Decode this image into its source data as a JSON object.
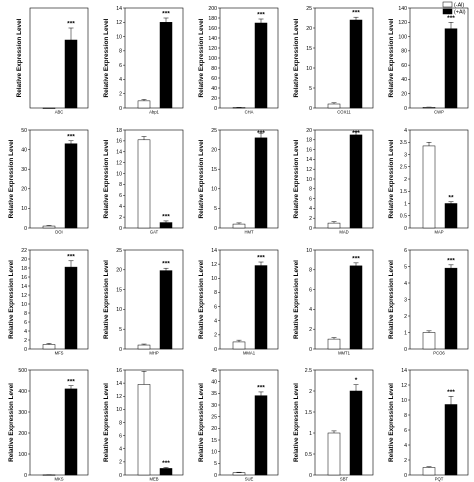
{
  "legend": {
    "labels": [
      "(-Al)",
      "(+Al)"
    ],
    "position": "top-right",
    "colors": [
      "#ffffff",
      "#000000"
    ]
  },
  "chart_data": [
    {
      "type": "bar",
      "gene": "ABC",
      "categories": [
        "(-Al)",
        "(+Al)"
      ],
      "values": [
        0,
        340
      ],
      "errors": [
        0,
        60
      ],
      "significance": "***",
      "ylabel": "Relative Expression Level",
      "ylim": [
        0,
        500
      ],
      "yticks": [],
      "show_ticklabels": false
    },
    {
      "type": "bar",
      "gene": "Abp1",
      "categories": [
        "(-Al)",
        "(+Al)"
      ],
      "values": [
        1,
        12
      ],
      "errors": [
        0.2,
        0.6
      ],
      "significance": "***",
      "ylabel": "Relative Expression Level",
      "ylim": [
        0,
        14
      ],
      "yticks": [
        0,
        2,
        4,
        6,
        8,
        10,
        12,
        14
      ],
      "show_ticklabels": true
    },
    {
      "type": "bar",
      "gene": "CHA",
      "categories": [
        "(-Al)",
        "(+Al)"
      ],
      "values": [
        1,
        170
      ],
      "errors": [
        0.4,
        8
      ],
      "significance": "***",
      "ylabel": "Relative Expression Level",
      "ylim": [
        0,
        200
      ],
      "yticks": [
        0,
        20,
        40,
        60,
        80,
        100,
        120,
        140,
        160,
        180,
        200
      ],
      "show_ticklabels": true
    },
    {
      "type": "bar",
      "gene": "COX11",
      "categories": [
        "(-Al)",
        "(+Al)"
      ],
      "values": [
        1,
        22
      ],
      "errors": [
        0.3,
        0.7
      ],
      "significance": "***",
      "ylabel": "Relative Expression Level",
      "ylim": [
        0,
        25
      ],
      "yticks": [
        0,
        5,
        10,
        15,
        20,
        25
      ],
      "show_ticklabels": true
    },
    {
      "type": "bar",
      "gene": "CWP",
      "categories": [
        "(-Al)",
        "(+Al)"
      ],
      "values": [
        1,
        111
      ],
      "errors": [
        0.3,
        9
      ],
      "significance": "***",
      "ylabel": "Relative Expression Level",
      "ylim": [
        0,
        140
      ],
      "yticks": [
        0,
        20,
        40,
        60,
        80,
        100,
        120,
        140
      ],
      "show_ticklabels": true
    },
    {
      "type": "bar",
      "gene": "DOI",
      "categories": [
        "(-Al)",
        "(+Al)"
      ],
      "values": [
        1,
        43
      ],
      "errors": [
        0.3,
        1.5
      ],
      "significance": "***",
      "ylabel": "Relative Expression Level",
      "ylim": [
        0,
        50
      ],
      "yticks": [
        0,
        10,
        20,
        30,
        40,
        50
      ],
      "show_ticklabels": true
    },
    {
      "type": "bar",
      "gene": "GAT",
      "categories": [
        "(-Al)",
        "(+Al)"
      ],
      "values": [
        16.2,
        1
      ],
      "errors": [
        0.6,
        0.3
      ],
      "significance": "***",
      "ylabel": "Relative Expression Level",
      "ylim": [
        0,
        18
      ],
      "yticks": [
        0,
        2,
        4,
        6,
        8,
        10,
        12,
        14,
        16,
        18
      ],
      "show_ticklabels": true
    },
    {
      "type": "bar",
      "gene": "HMT",
      "categories": [
        "(-Al)",
        "(+Al)"
      ],
      "values": [
        1,
        23
      ],
      "errors": [
        0.3,
        1.2
      ],
      "significance": "***",
      "ylabel": "Relative Expression Level",
      "ylim": [
        0,
        25
      ],
      "yticks": [
        0,
        5,
        10,
        15,
        20,
        25
      ],
      "show_ticklabels": true
    },
    {
      "type": "bar",
      "gene": "MAD",
      "categories": [
        "(-Al)",
        "(+Al)"
      ],
      "values": [
        1,
        19
      ],
      "errors": [
        0.3,
        0.7
      ],
      "significance": "***",
      "ylabel": "Relative Expression Level",
      "ylim": [
        0,
        20
      ],
      "yticks": [
        0,
        2,
        4,
        6,
        8,
        10,
        12,
        14,
        16,
        18,
        20
      ],
      "show_ticklabels": true
    },
    {
      "type": "bar",
      "gene": "MAP",
      "categories": [
        "(-Al)",
        "(+Al)"
      ],
      "values": [
        3.35,
        1
      ],
      "errors": [
        0.15,
        0.07
      ],
      "significance": "**",
      "ylabel": "Relative Expression Level",
      "ylim": [
        0,
        4
      ],
      "yticks": [
        0,
        0.5,
        1,
        1.5,
        2,
        2.5,
        3,
        3.5,
        4
      ],
      "show_ticklabels": true
    },
    {
      "type": "bar",
      "gene": "MFS",
      "categories": [
        "(-Al)",
        "(+Al)"
      ],
      "values": [
        1,
        18.2
      ],
      "errors": [
        0.25,
        1.4
      ],
      "significance": "***",
      "ylabel": "Relative Expression Level",
      "ylim": [
        0,
        22
      ],
      "yticks": [
        0,
        2,
        4,
        6,
        8,
        10,
        12,
        14,
        16,
        18,
        20,
        22
      ],
      "show_ticklabels": true
    },
    {
      "type": "bar",
      "gene": "MHP",
      "categories": [
        "(-Al)",
        "(+Al)"
      ],
      "values": [
        1,
        19.8
      ],
      "errors": [
        0.25,
        0.6
      ],
      "significance": "***",
      "ylabel": "Relative Expression Level",
      "ylim": [
        0,
        25
      ],
      "yticks": [
        0,
        5,
        10,
        15,
        20,
        25
      ],
      "show_ticklabels": true
    },
    {
      "type": "bar",
      "gene": "MMA1",
      "categories": [
        "(-Al)",
        "(+Al)"
      ],
      "values": [
        1,
        11.8
      ],
      "errors": [
        0.25,
        0.5
      ],
      "significance": "***",
      "ylabel": "Relative Expression Level",
      "ylim": [
        0,
        14
      ],
      "yticks": [
        0,
        2,
        4,
        6,
        8,
        10,
        12,
        14
      ],
      "show_ticklabels": true
    },
    {
      "type": "bar",
      "gene": "MMT1",
      "categories": [
        "(-Al)",
        "(+Al)"
      ],
      "values": [
        1,
        8.4
      ],
      "errors": [
        0.15,
        0.3
      ],
      "significance": "***",
      "ylabel": "Relative Expression Level",
      "ylim": [
        0,
        10
      ],
      "yticks": [
        0,
        2,
        4,
        6,
        8,
        10
      ],
      "show_ticklabels": true
    },
    {
      "type": "bar",
      "gene": "PCO6",
      "categories": [
        "(-Al)",
        "(+Al)"
      ],
      "values": [
        1,
        4.9
      ],
      "errors": [
        0.1,
        0.2
      ],
      "significance": "***",
      "ylabel": "Relative Expression Level",
      "ylim": [
        0,
        6
      ],
      "yticks": [
        0,
        1,
        2,
        3,
        4,
        5,
        6
      ],
      "show_ticklabels": true
    },
    {
      "type": "bar",
      "gene": "MKS",
      "categories": [
        "(-Al)",
        "(+Al)"
      ],
      "values": [
        1,
        410
      ],
      "errors": [
        0.5,
        15
      ],
      "significance": "***",
      "ylabel": "Relative Expression Level",
      "ylim": [
        0,
        500
      ],
      "yticks": [
        0,
        100,
        200,
        300,
        400,
        500
      ],
      "show_ticklabels": true
    },
    {
      "type": "bar",
      "gene": "MEB",
      "categories": [
        "(-Al)",
        "(+Al)"
      ],
      "values": [
        13.8,
        1
      ],
      "errors": [
        2,
        0.15
      ],
      "significance": "***",
      "ylabel": "Relative Expression Level",
      "ylim": [
        0,
        16
      ],
      "yticks": [
        0,
        2,
        4,
        6,
        8,
        10,
        12,
        14,
        16
      ],
      "show_ticklabels": true
    },
    {
      "type": "bar",
      "gene": "SUE",
      "categories": [
        "(-Al)",
        "(+Al)"
      ],
      "values": [
        1,
        34
      ],
      "errors": [
        0.2,
        1.6
      ],
      "significance": "***",
      "ylabel": "Relative Expression Level",
      "ylim": [
        0,
        45
      ],
      "yticks": [
        0,
        5,
        10,
        15,
        20,
        25,
        30,
        35,
        40,
        45
      ],
      "show_ticklabels": true
    },
    {
      "type": "bar",
      "gene": "SBT",
      "categories": [
        "(-Al)",
        "(+Al)"
      ],
      "values": [
        1,
        2
      ],
      "errors": [
        0.05,
        0.15
      ],
      "significance": "*",
      "ylabel": "Relative Expression Level",
      "ylim": [
        0,
        2.5
      ],
      "yticks": [
        0,
        0.5,
        1,
        1.5,
        2,
        2.5
      ],
      "show_ticklabels": true
    },
    {
      "type": "bar",
      "gene": "PQT",
      "categories": [
        "(-Al)",
        "(+Al)"
      ],
      "values": [
        1,
        9.4
      ],
      "errors": [
        0.1,
        1.1
      ],
      "significance": "***",
      "ylabel": "Relative Expression Level",
      "ylim": [
        0,
        14
      ],
      "yticks": [
        0,
        2,
        4,
        6,
        8,
        10,
        12,
        14
      ],
      "show_ticklabels": true
    }
  ]
}
